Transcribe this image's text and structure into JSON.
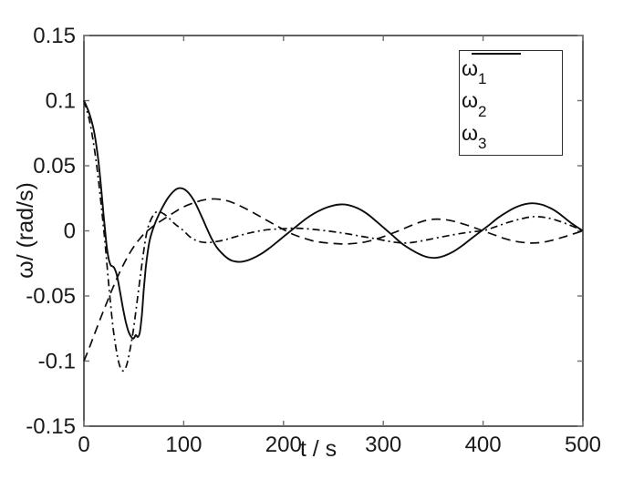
{
  "figure": {
    "xlabel": "t / s",
    "ylabel": "ω/ (rad/s)",
    "background": "#ffffff",
    "axis_color": "#1c1c1c",
    "tick_color": "#6e6e6e",
    "curve_color": "#0d0d0d"
  },
  "legend": {
    "items": [
      {
        "base": "ω",
        "sub": "1",
        "style": "dash-dot"
      },
      {
        "base": "ω",
        "sub": "2",
        "style": "solid"
      },
      {
        "base": "ω",
        "sub": "3",
        "style": "dashed"
      }
    ]
  },
  "chart_data": {
    "type": "line",
    "title": "",
    "xlabel": "t / s",
    "ylabel": "ω/ (rad/s)",
    "xlim": [
      0,
      500
    ],
    "ylim": [
      -0.15,
      0.15
    ],
    "xticks": [
      0,
      100,
      200,
      300,
      400,
      500
    ],
    "xtick_labels": [
      "0",
      "100",
      "200",
      "300",
      "400",
      "500"
    ],
    "yticks": [
      0.15,
      0.1,
      0.05,
      0,
      -0.05,
      -0.1,
      -0.15
    ],
    "ytick_labels": [
      "0.15",
      "0.1",
      "0.05",
      "0",
      "-0.05",
      "-0.1",
      "-0.15"
    ],
    "grid": false,
    "legend_position": "upper right",
    "series": [
      {
        "name": "ω_1",
        "line_style": "dash-dot",
        "points": [
          [
            0,
            0.1
          ],
          [
            6,
            0.083
          ],
          [
            12,
            0.055
          ],
          [
            17,
            0.022
          ],
          [
            21,
            -0.008
          ],
          [
            25,
            -0.042
          ],
          [
            29,
            -0.073
          ],
          [
            33,
            -0.094
          ],
          [
            36,
            -0.104
          ],
          [
            39,
            -0.1075
          ],
          [
            42,
            -0.105
          ],
          [
            45,
            -0.096
          ],
          [
            49,
            -0.079
          ],
          [
            53,
            -0.056
          ],
          [
            57,
            -0.032
          ],
          [
            61,
            -0.01
          ],
          [
            64,
            0.002
          ],
          [
            68,
            0.01
          ],
          [
            72,
            0.0142
          ],
          [
            76,
            0.0145
          ],
          [
            80,
            0.013
          ],
          [
            85,
            0.01
          ],
          [
            90,
            0.006
          ],
          [
            95,
            0.003
          ],
          [
            100,
            0
          ],
          [
            106,
            -0.0045
          ],
          [
            112,
            -0.0072
          ],
          [
            118,
            -0.0086
          ],
          [
            125,
            -0.009
          ],
          [
            133,
            -0.0082
          ],
          [
            142,
            -0.0068
          ],
          [
            152,
            -0.0045
          ],
          [
            165,
            -0.0018
          ],
          [
            180,
            0.0005
          ],
          [
            195,
            0.0015
          ],
          [
            210,
            0.002
          ],
          [
            225,
            0.0015
          ],
          [
            240,
            0.0003
          ],
          [
            255,
            -0.0012
          ],
          [
            268,
            -0.0028
          ],
          [
            280,
            -0.0045
          ],
          [
            292,
            -0.006
          ],
          [
            304,
            -0.0078
          ],
          [
            313,
            -0.0089
          ],
          [
            321,
            -0.0094
          ],
          [
            330,
            -0.0088
          ],
          [
            342,
            -0.0072
          ],
          [
            355,
            -0.0052
          ],
          [
            368,
            -0.0033
          ],
          [
            381,
            -0.0016
          ],
          [
            393,
            -0.0004
          ],
          [
            400,
            0
          ],
          [
            412,
            0.003
          ],
          [
            424,
            0.0062
          ],
          [
            436,
            0.0088
          ],
          [
            446,
            0.0105
          ],
          [
            453,
            0.011
          ],
          [
            461,
            0.0104
          ],
          [
            470,
            0.009
          ],
          [
            480,
            0.0064
          ],
          [
            490,
            0.0034
          ],
          [
            500,
            0
          ]
        ]
      },
      {
        "name": "ω_2",
        "line_style": "solid",
        "points": [
          [
            0,
            0.1
          ],
          [
            5,
            0.091
          ],
          [
            10,
            0.077
          ],
          [
            14,
            0.057
          ],
          [
            17,
            0.035
          ],
          [
            19,
            0.018
          ],
          [
            21,
            0.002
          ],
          [
            23,
            -0.013
          ],
          [
            25,
            -0.022
          ],
          [
            27,
            -0.0265
          ],
          [
            30,
            -0.028
          ],
          [
            33,
            -0.034
          ],
          [
            36,
            -0.046
          ],
          [
            39,
            -0.059
          ],
          [
            42,
            -0.07
          ],
          [
            45,
            -0.078
          ],
          [
            48,
            -0.082
          ],
          [
            50,
            -0.0825
          ],
          [
            52,
            -0.08
          ],
          [
            54,
            -0.0815
          ],
          [
            56,
            -0.078
          ],
          [
            58,
            -0.065
          ],
          [
            60,
            -0.045
          ],
          [
            62,
            -0.028
          ],
          [
            64,
            -0.016
          ],
          [
            66,
            -0.007
          ],
          [
            69,
            0.001
          ],
          [
            73,
            0.009
          ],
          [
            78,
            0.017
          ],
          [
            84,
            0.025
          ],
          [
            90,
            0.0305
          ],
          [
            95,
            0.0327
          ],
          [
            100,
            0.0322
          ],
          [
            105,
            0.029
          ],
          [
            110,
            0.0237
          ],
          [
            115,
            0.016
          ],
          [
            120,
            0.0075
          ],
          [
            124,
            0.0005
          ],
          [
            128,
            -0.006
          ],
          [
            133,
            -0.0125
          ],
          [
            138,
            -0.017
          ],
          [
            143,
            -0.0205
          ],
          [
            148,
            -0.0228
          ],
          [
            154,
            -0.0238
          ],
          [
            160,
            -0.0235
          ],
          [
            168,
            -0.0215
          ],
          [
            177,
            -0.018
          ],
          [
            186,
            -0.0132
          ],
          [
            195,
            -0.0077
          ],
          [
            204,
            -0.002
          ],
          [
            213,
            0.0035
          ],
          [
            222,
            0.009
          ],
          [
            231,
            0.0135
          ],
          [
            240,
            0.017
          ],
          [
            249,
            0.0193
          ],
          [
            257,
            0.0203
          ],
          [
            265,
            0.0198
          ],
          [
            274,
            0.0175
          ],
          [
            283,
            0.0135
          ],
          [
            292,
            0.008
          ],
          [
            301,
            0.002
          ],
          [
            310,
            -0.004
          ],
          [
            319,
            -0.01
          ],
          [
            328,
            -0.0145
          ],
          [
            337,
            -0.0182
          ],
          [
            345,
            -0.0203
          ],
          [
            353,
            -0.0207
          ],
          [
            361,
            -0.0192
          ],
          [
            370,
            -0.016
          ],
          [
            379,
            -0.0115
          ],
          [
            388,
            -0.006
          ],
          [
            397,
            -0.0008
          ],
          [
            406,
            0.0045
          ],
          [
            415,
            0.01
          ],
          [
            424,
            0.0145
          ],
          [
            433,
            0.0182
          ],
          [
            442,
            0.0205
          ],
          [
            450,
            0.0212
          ],
          [
            458,
            0.0203
          ],
          [
            466,
            0.018
          ],
          [
            474,
            0.0145
          ],
          [
            482,
            0.0098
          ],
          [
            490,
            0.005
          ],
          [
            500,
            0
          ]
        ]
      },
      {
        "name": "ω_3",
        "line_style": "dashed",
        "points": [
          [
            0,
            -0.1
          ],
          [
            6,
            -0.0885
          ],
          [
            12,
            -0.0765
          ],
          [
            18,
            -0.0645
          ],
          [
            24,
            -0.053
          ],
          [
            30,
            -0.042
          ],
          [
            36,
            -0.0315
          ],
          [
            42,
            -0.0225
          ],
          [
            48,
            -0.0145
          ],
          [
            54,
            -0.008
          ],
          [
            60,
            -0.0025
          ],
          [
            66,
            0.0015
          ],
          [
            72,
            0.005
          ],
          [
            80,
            0.009
          ],
          [
            88,
            0.013
          ],
          [
            96,
            0.0168
          ],
          [
            104,
            0.0198
          ],
          [
            112,
            0.022
          ],
          [
            120,
            0.0237
          ],
          [
            128,
            0.0245
          ],
          [
            136,
            0.0242
          ],
          [
            144,
            0.023
          ],
          [
            152,
            0.0207
          ],
          [
            161,
            0.0175
          ],
          [
            170,
            0.0138
          ],
          [
            180,
            0.0095
          ],
          [
            190,
            0.0052
          ],
          [
            200,
            0.001
          ],
          [
            210,
            -0.0028
          ],
          [
            220,
            -0.0055
          ],
          [
            230,
            -0.0078
          ],
          [
            240,
            -0.009
          ],
          [
            252,
            -0.0098
          ],
          [
            262,
            -0.0101
          ],
          [
            272,
            -0.0096
          ],
          [
            282,
            -0.0085
          ],
          [
            292,
            -0.0065
          ],
          [
            302,
            -0.004
          ],
          [
            312,
            -0.001
          ],
          [
            322,
            0.0022
          ],
          [
            331,
            0.005
          ],
          [
            339,
            0.0072
          ],
          [
            347,
            0.0087
          ],
          [
            354,
            0.009
          ],
          [
            362,
            0.0086
          ],
          [
            371,
            0.0073
          ],
          [
            380,
            0.0053
          ],
          [
            390,
            0.0028
          ],
          [
            400,
            0
          ],
          [
            410,
            -0.0028
          ],
          [
            420,
            -0.0055
          ],
          [
            430,
            -0.0077
          ],
          [
            440,
            -0.0089
          ],
          [
            449,
            -0.0094
          ],
          [
            459,
            -0.0089
          ],
          [
            469,
            -0.0073
          ],
          [
            479,
            -0.0051
          ],
          [
            489,
            -0.0027
          ],
          [
            500,
            0
          ]
        ]
      }
    ]
  }
}
